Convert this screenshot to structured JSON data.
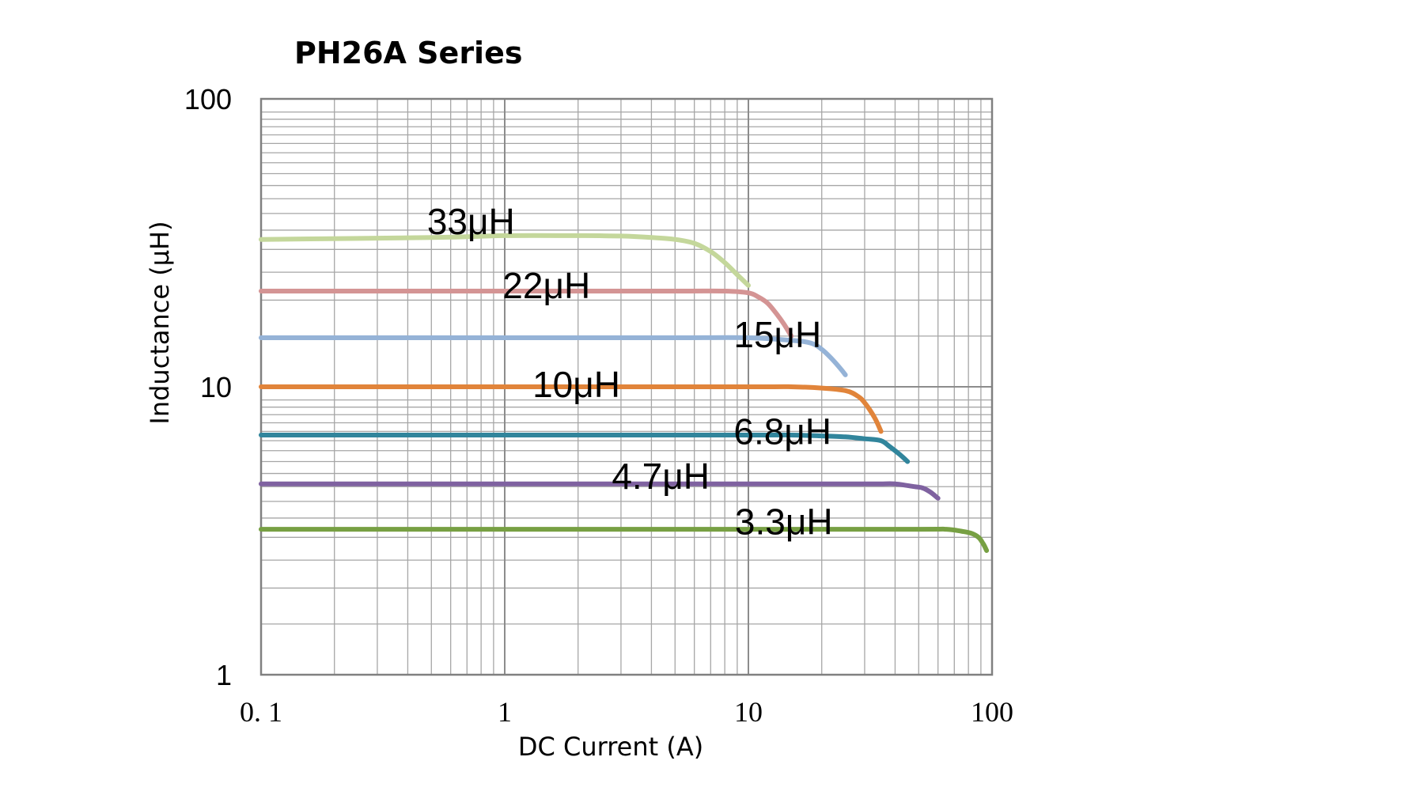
{
  "chart_data": {
    "type": "line",
    "title": "PH26A  Series",
    "xlabel": "DC Current (A)",
    "ylabel": "Inductance (μH)",
    "x_scale": "log",
    "y_scale": "log",
    "xlim": [
      0.1,
      100
    ],
    "ylim": [
      1,
      100
    ],
    "x_tick_labels": [
      "0. 1",
      "1",
      "10",
      "100"
    ],
    "y_tick_labels": [
      "1",
      "10",
      "100"
    ],
    "grid": true,
    "legend": "inline labels",
    "series": [
      {
        "name": "33μH",
        "color": "#c4d79b",
        "x": [
          0.1,
          0.5,
          1,
          2,
          3,
          4,
          5,
          6,
          7,
          8,
          9,
          10
        ],
        "y": [
          32.5,
          33,
          33.5,
          33.5,
          33.4,
          33,
          32.5,
          31.5,
          29.5,
          27,
          24.5,
          22.5
        ]
      },
      {
        "name": "22μH",
        "color": "#d49494",
        "x": [
          0.1,
          1,
          5,
          8,
          10,
          11,
          12,
          13,
          14,
          15
        ],
        "y": [
          21.5,
          21.5,
          21.5,
          21.5,
          21.2,
          20.5,
          19.5,
          18,
          16.5,
          15
        ]
      },
      {
        "name": "15μH",
        "color": "#95b3d7",
        "x": [
          0.1,
          1,
          5,
          10,
          15,
          18,
          20,
          22,
          24,
          25
        ],
        "y": [
          14.8,
          14.8,
          14.8,
          14.8,
          14.5,
          14.2,
          13.5,
          12.5,
          11.5,
          11
        ]
      },
      {
        "name": "10μH",
        "color": "#e1843a",
        "x": [
          0.1,
          1,
          10,
          15,
          20,
          25,
          28,
          30,
          33,
          35
        ],
        "y": [
          10,
          10,
          10,
          10,
          9.9,
          9.7,
          9.3,
          8.8,
          7.8,
          7
        ]
      },
      {
        "name": "6.8μH",
        "color": "#31859c",
        "x": [
          0.1,
          1,
          10,
          15,
          20,
          25,
          30,
          35,
          38,
          42,
          45
        ],
        "y": [
          6.8,
          6.8,
          6.8,
          6.8,
          6.75,
          6.7,
          6.6,
          6.5,
          6.2,
          5.8,
          5.5
        ]
      },
      {
        "name": "4.7μH",
        "color": "#7f62a0",
        "x": [
          0.1,
          1,
          10,
          30,
          35,
          40,
          48,
          52,
          56,
          60
        ],
        "y": [
          4.6,
          4.6,
          4.6,
          4.6,
          4.6,
          4.6,
          4.5,
          4.45,
          4.3,
          4.1
        ]
      },
      {
        "name": "3.3μH",
        "color": "#77a043",
        "x": [
          0.1,
          1,
          10,
          50,
          65,
          75,
          82,
          88,
          92,
          95
        ],
        "y": [
          3.2,
          3.2,
          3.2,
          3.2,
          3.2,
          3.15,
          3.1,
          3.0,
          2.85,
          2.7
        ]
      }
    ],
    "labels": [
      {
        "text": "33μH",
        "x": 0.48,
        "y": 37.5
      },
      {
        "text": "22μH",
        "x": 0.98,
        "y": 22.5
      },
      {
        "text": "15μH",
        "x": 8.7,
        "y": 15.2
      },
      {
        "text": "10μH",
        "x": 1.3,
        "y": 10.2
      },
      {
        "text": "6.8μH",
        "x": 8.7,
        "y": 7.0
      },
      {
        "text": "4.7μH",
        "x": 2.75,
        "y": 4.9
      },
      {
        "text": "3.3μH",
        "x": 8.8,
        "y": 3.4
      }
    ]
  }
}
